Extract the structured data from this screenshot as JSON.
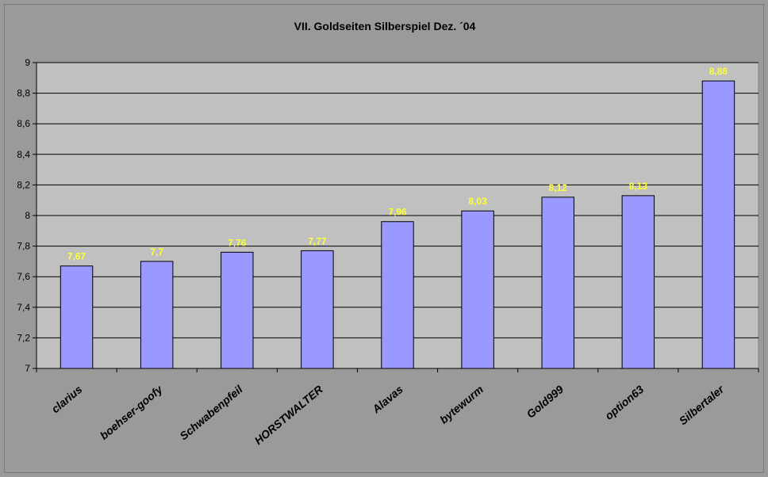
{
  "chart_data": {
    "type": "bar",
    "title": "VII. Goldseiten Silberspiel Dez. ´04",
    "xlabel": "",
    "ylabel": "",
    "categories": [
      "clarius",
      "boehser-goofy",
      "Schwabenpfeil",
      "HORSTWALTER",
      "Alavas",
      "bytewurm",
      "Gold999",
      "option63",
      "Silbertaler"
    ],
    "values": [
      7.67,
      7.7,
      7.76,
      7.77,
      7.96,
      8.03,
      8.12,
      8.13,
      8.88
    ],
    "data_labels": [
      "7,67",
      "7,7",
      "7,76",
      "7,77",
      "7,96",
      "8,03",
      "8,12",
      "8,13",
      "8,88"
    ],
    "ylim": [
      7,
      9
    ],
    "yticks": [
      7,
      7.2,
      7.4,
      7.6,
      7.8,
      8,
      8.2,
      8.4,
      8.6,
      8.8,
      9
    ],
    "ytick_labels": [
      "7",
      "7,2",
      "7,4",
      "7,6",
      "7,8",
      "8",
      "8,2",
      "8,4",
      "8,6",
      "8,8",
      "9"
    ],
    "grid": true,
    "legend": "none",
    "colors": {
      "background": "#9a9a9a",
      "plot_area": "#c0c0c0",
      "bar_fill": "#9999ff",
      "bar_stroke": "#000000",
      "gridline": "#000000",
      "data_label": "#ffff33"
    }
  }
}
